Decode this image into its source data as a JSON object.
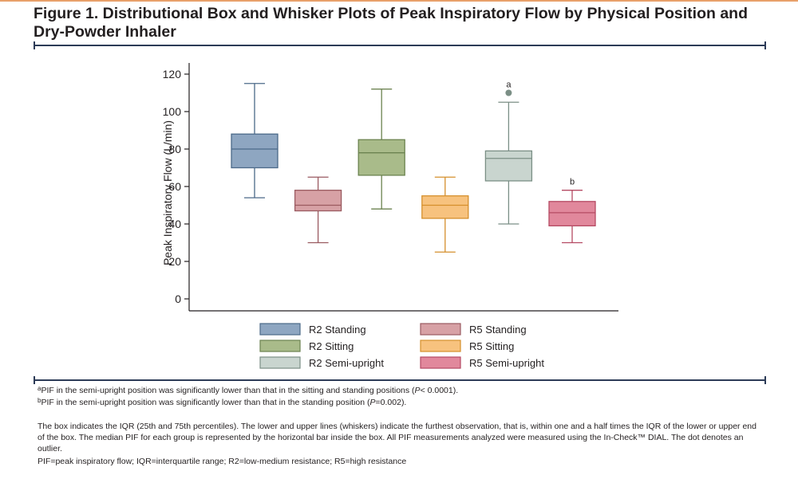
{
  "figure": {
    "title": "Figure 1. Distributional Box and Whisker Plots of Peak Inspiratory Flow by Physical Position and Dry-Powder Inhaler"
  },
  "chart_data": {
    "type": "box",
    "ylabel": "Peak Inspiratory Flow (L/min)",
    "xlabel": "",
    "ylim": [
      0,
      120
    ],
    "yticks": [
      0,
      20,
      40,
      60,
      80,
      100,
      120
    ],
    "grid": false,
    "legend_position": "bottom",
    "series": [
      {
        "name": "R2 Standing",
        "whisker_low": 54,
        "q1": 70,
        "median": 80,
        "q3": 88,
        "whisker_high": 115,
        "outliers": [],
        "annotation": "",
        "fill": "#8ea6c1",
        "stroke": "#4c6a89"
      },
      {
        "name": "R5 Standing",
        "whisker_low": 30,
        "q1": 47,
        "median": 50,
        "q3": 58,
        "whisker_high": 65,
        "outliers": [],
        "annotation": "",
        "fill": "#d7a1a5",
        "stroke": "#9a5a60"
      },
      {
        "name": "R2 Sitting",
        "whisker_low": 48,
        "q1": 66,
        "median": 78,
        "q3": 85,
        "whisker_high": 112,
        "outliers": [],
        "annotation": "",
        "fill": "#a9bb8a",
        "stroke": "#6c8350"
      },
      {
        "name": "R5 Sitting",
        "whisker_low": 25,
        "q1": 43,
        "median": 50,
        "q3": 55,
        "whisker_high": 65,
        "outliers": [],
        "annotation": "",
        "fill": "#f7c27e",
        "stroke": "#d58f2c"
      },
      {
        "name": "R2 Semi-upright",
        "whisker_low": 40,
        "q1": 63,
        "median": 75,
        "q3": 79,
        "whisker_high": 105,
        "outliers": [
          110
        ],
        "annotation": "a",
        "fill": "#c9d5cf",
        "stroke": "#7b8f86"
      },
      {
        "name": "R5 Semi-upright",
        "whisker_low": 30,
        "q1": 39,
        "median": 46,
        "q3": 52,
        "whisker_high": 58,
        "outliers": [],
        "annotation": "b",
        "fill": "#e1889c",
        "stroke": "#b54a63"
      }
    ]
  },
  "footnotes": {
    "a": {
      "mark": "a",
      "pre": "PIF in the semi-upright position was significantly lower than that in the sitting and standing positions (",
      "stat": "P",
      "post": "< 0.0001)."
    },
    "b": {
      "mark": "b",
      "pre": "PIF in the semi-upright position was significantly lower than that in the standing position (",
      "stat": "P",
      "post": "=0.002)."
    }
  },
  "note": "The box indicates the IQR (25th and 75th percentiles). The lower and upper lines (whiskers) indicate the furthest observation, that is, within one and a half times the IQR of the lower or upper end of the box. The median PIF for each group is represented by the horizontal bar inside the box. All PIF measurements analyzed were measured using the In-Check™ DIAL. The dot denotes an outlier.",
  "abbreviations": "PIF=peak inspiratory flow; IQR=interquartile range; R2=low-medium resistance; R5=high resistance"
}
